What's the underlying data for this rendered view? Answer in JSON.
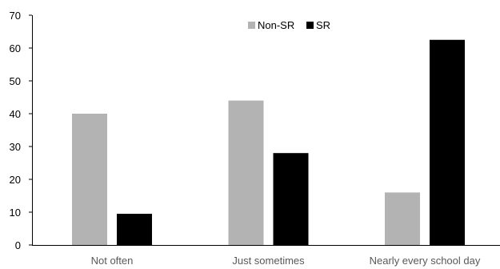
{
  "chart_data": {
    "type": "bar",
    "title": "",
    "xlabel": "",
    "ylabel": "",
    "categories": [
      "Not often",
      "Just sometimes",
      "Nearly every school day"
    ],
    "series": [
      {
        "name": "Non-SR",
        "color": "#b3b3b3",
        "values": [
          40,
          44,
          16
        ]
      },
      {
        "name": "SR",
        "color": "#000000",
        "values": [
          9.5,
          28,
          62.5
        ]
      }
    ],
    "ylim": [
      0,
      70
    ],
    "yticks": [
      "0",
      "10",
      "20",
      "30",
      "40",
      "50",
      "60",
      "70"
    ],
    "grid": false,
    "legend": "top-center"
  }
}
